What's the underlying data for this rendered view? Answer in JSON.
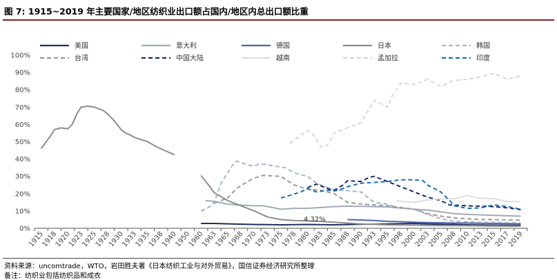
{
  "figure": {
    "title": "图 7:  1915~2019 年主要国家/地区纺织业出口额占国内/地区内总出口额比重",
    "source": "资料来源：uncomtrade，WTO，岩田胜夫著《日本纺织工业与对外贸易》，国信证券经济研究所整理",
    "remark": "备注：纺织业包括纺织品和成衣"
  },
  "chart_data": {
    "type": "line",
    "title": "1915~2019 年主要国家/地区纺织业出口额占国内/地区内总出口额比重",
    "xlabel": "",
    "ylabel": "",
    "ylim": [
      0,
      100
    ],
    "yticks": [
      "0%",
      "10%",
      "20%",
      "30%",
      "40%",
      "50%",
      "60%",
      "70%",
      "80%",
      "90%",
      "100%"
    ],
    "xticks": [
      "1915",
      "1918",
      "1920",
      "1923",
      "1925",
      "1928",
      "1930",
      "1933",
      "1935",
      "1938",
      "1940",
      "1950",
      "1960",
      "1963",
      "1965",
      "1968",
      "1970",
      "1973",
      "1975",
      "1978",
      "1980",
      "1983",
      "1985",
      "1988",
      "1990",
      "1993",
      "1995",
      "1998",
      "2000",
      "2003",
      "2005",
      "2008",
      "2010",
      "2013",
      "2015",
      "2017",
      "2019"
    ],
    "annotation": {
      "label": "4.32%",
      "x": 1979,
      "y": 4.32
    },
    "series": [
      {
        "name": "美国",
        "color": "#1f2d5c",
        "dash": "solid",
        "points": [
          [
            1960,
            2.8
          ],
          [
            1963,
            2.8
          ],
          [
            1966,
            2.5
          ],
          [
            1970,
            2.2
          ],
          [
            1975,
            2.0
          ],
          [
            1980,
            2.2
          ],
          [
            1985,
            2.0
          ],
          [
            1990,
            2.3
          ],
          [
            1995,
            2.5
          ],
          [
            2000,
            2.8
          ],
          [
            2003,
            2.5
          ],
          [
            2005,
            2.3
          ],
          [
            2010,
            2.0
          ],
          [
            2015,
            1.8
          ],
          [
            2019,
            1.7
          ]
        ]
      },
      {
        "name": "意大利",
        "color": "#a0abb8",
        "dash": "solid",
        "points": [
          [
            1961,
            16
          ],
          [
            1963,
            15.5
          ],
          [
            1965,
            14
          ],
          [
            1967,
            13.5
          ],
          [
            1970,
            13
          ],
          [
            1972,
            13
          ],
          [
            1975,
            11
          ],
          [
            1978,
            11.5
          ],
          [
            1980,
            11.5
          ],
          [
            1985,
            12.5
          ],
          [
            1988,
            12.8
          ],
          [
            1990,
            12.7
          ],
          [
            1995,
            12.3
          ],
          [
            2000,
            11
          ],
          [
            2003,
            10.5
          ],
          [
            2005,
            9.5
          ],
          [
            2008,
            8.5
          ],
          [
            2010,
            8
          ],
          [
            2015,
            7.5
          ],
          [
            2017,
            7.2
          ],
          [
            2019,
            7
          ]
        ]
      },
      {
        "name": "德国",
        "color": "#4a64a8",
        "dash": "solid",
        "points": [
          [
            1988,
            5
          ],
          [
            1990,
            4.8
          ],
          [
            1993,
            4.5
          ],
          [
            1995,
            4
          ],
          [
            1998,
            3.8
          ],
          [
            2000,
            3.5
          ],
          [
            2003,
            3.3
          ],
          [
            2005,
            3.2
          ],
          [
            2008,
            3
          ],
          [
            2010,
            3
          ],
          [
            2013,
            2.9
          ],
          [
            2015,
            2.8
          ],
          [
            2017,
            2.7
          ],
          [
            2019,
            2.6
          ]
        ]
      },
      {
        "name": "日本",
        "color": "#8c8c8c",
        "dash": "solid",
        "points": [
          [
            1915,
            46
          ],
          [
            1917,
            53
          ],
          [
            1918,
            57
          ],
          [
            1919,
            58
          ],
          [
            1920,
            57.5
          ],
          [
            1921,
            60
          ],
          [
            1922,
            66
          ],
          [
            1923,
            70
          ],
          [
            1924,
            70.5
          ],
          [
            1925,
            70
          ],
          [
            1926,
            69
          ],
          [
            1927,
            68
          ],
          [
            1928,
            66
          ],
          [
            1929,
            62
          ],
          [
            1930,
            57
          ],
          [
            1931,
            55
          ],
          [
            1932,
            54
          ],
          [
            1933,
            52.5
          ],
          [
            1935,
            50
          ],
          [
            1937,
            47
          ],
          [
            1940,
            42.5
          ],
          [
            1960,
            30.5
          ],
          [
            1962,
            24
          ],
          [
            1963,
            20.5
          ],
          [
            1965,
            16
          ],
          [
            1968,
            13
          ],
          [
            1970,
            10
          ],
          [
            1973,
            6.5
          ],
          [
            1975,
            5
          ],
          [
            1978,
            4.5
          ],
          [
            1980,
            4.32
          ],
          [
            1983,
            4
          ],
          [
            1985,
            3.5
          ],
          [
            1988,
            3
          ],
          [
            1990,
            2.5
          ],
          [
            1993,
            2.3
          ],
          [
            1995,
            2
          ],
          [
            2000,
            1.8
          ],
          [
            2005,
            1.6
          ],
          [
            2010,
            1.5
          ],
          [
            2015,
            1.3
          ],
          [
            2019,
            1.2
          ]
        ]
      },
      {
        "name": "韩国",
        "color": "#a7b3c6",
        "dash": "dashed",
        "points": [
          [
            1960,
            10
          ],
          [
            1961,
            11
          ],
          [
            1962,
            12.5
          ],
          [
            1963,
            15
          ],
          [
            1964,
            26
          ],
          [
            1965,
            32
          ],
          [
            1966,
            36
          ],
          [
            1967,
            38.8
          ],
          [
            1968,
            38
          ],
          [
            1969,
            36.5
          ],
          [
            1970,
            36
          ],
          [
            1971,
            37
          ],
          [
            1972,
            37
          ],
          [
            1974,
            36
          ],
          [
            1976,
            35
          ],
          [
            1978,
            32
          ],
          [
            1980,
            30
          ],
          [
            1982,
            26
          ],
          [
            1985,
            22
          ],
          [
            1987,
            22
          ],
          [
            1990,
            21
          ],
          [
            1993,
            15
          ],
          [
            1995,
            14
          ],
          [
            1997,
            12
          ],
          [
            2000,
            11
          ],
          [
            2003,
            8
          ],
          [
            2005,
            5.5
          ],
          [
            2008,
            4
          ],
          [
            2010,
            3.8
          ],
          [
            2013,
            3.5
          ],
          [
            2015,
            3.4
          ],
          [
            2017,
            3.3
          ],
          [
            2019,
            3.2
          ]
        ]
      },
      {
        "name": "台湾",
        "color": "#9a9a9a",
        "dash": "dashed",
        "points": [
          [
            1963,
            14.5
          ],
          [
            1964,
            16
          ],
          [
            1965,
            17.5
          ],
          [
            1967,
            23
          ],
          [
            1969,
            27
          ],
          [
            1970,
            29
          ],
          [
            1972,
            30.5
          ],
          [
            1975,
            30
          ],
          [
            1978,
            25
          ],
          [
            1980,
            22.5
          ],
          [
            1983,
            22
          ],
          [
            1985,
            20
          ],
          [
            1988,
            15
          ],
          [
            1990,
            14
          ],
          [
            1993,
            13.5
          ],
          [
            1995,
            13
          ],
          [
            1998,
            12
          ],
          [
            2000,
            11
          ],
          [
            2003,
            8.5
          ],
          [
            2005,
            7
          ],
          [
            2008,
            6
          ],
          [
            2010,
            5.5
          ],
          [
            2013,
            5
          ],
          [
            2015,
            5
          ],
          [
            2017,
            4.8
          ],
          [
            2019,
            4.7
          ]
        ]
      },
      {
        "name": "中国大陆",
        "color": "#1a2a66",
        "dash": "dashed",
        "points": [
          [
            1980,
            23.5
          ],
          [
            1982,
            25.5
          ],
          [
            1984,
            23
          ],
          [
            1985,
            22
          ],
          [
            1987,
            25
          ],
          [
            1988,
            27.5
          ],
          [
            1990,
            27
          ],
          [
            1992,
            29.5
          ],
          [
            1993,
            30
          ],
          [
            1994,
            28.5
          ],
          [
            1995,
            27
          ],
          [
            1998,
            24
          ],
          [
            2000,
            21
          ],
          [
            2003,
            18
          ],
          [
            2005,
            16
          ],
          [
            2007,
            13.5
          ],
          [
            2010,
            13
          ],
          [
            2013,
            12.8
          ],
          [
            2015,
            12.5
          ],
          [
            2017,
            11.8
          ],
          [
            2019,
            10.8
          ]
        ]
      },
      {
        "name": "越南",
        "color": "#dedede",
        "dash": "solid",
        "points": [
          [
            1997,
            16
          ],
          [
            1998,
            15.5
          ],
          [
            2000,
            15
          ],
          [
            2002,
            16
          ],
          [
            2005,
            17
          ],
          [
            2008,
            17
          ],
          [
            2010,
            19
          ],
          [
            2012,
            17.5
          ],
          [
            2015,
            17
          ],
          [
            2017,
            15.5
          ],
          [
            2019,
            15.5
          ]
        ]
      },
      {
        "name": "孟加拉",
        "color": "#d8d8d8",
        "dash": "dashed",
        "points": [
          [
            1977,
            49
          ],
          [
            1980,
            56.5
          ],
          [
            1981,
            55
          ],
          [
            1983,
            47
          ],
          [
            1984,
            48
          ],
          [
            1985,
            55
          ],
          [
            1988,
            58
          ],
          [
            1990,
            61
          ],
          [
            1993,
            74
          ],
          [
            1995,
            70
          ],
          [
            1996,
            76
          ],
          [
            1998,
            84
          ],
          [
            2000,
            83
          ],
          [
            2003,
            86
          ],
          [
            2005,
            82
          ],
          [
            2008,
            85.5
          ],
          [
            2010,
            86
          ],
          [
            2012,
            87
          ],
          [
            2015,
            89.5
          ],
          [
            2017,
            86
          ],
          [
            2019,
            88
          ]
        ]
      },
      {
        "name": "印度",
        "color": "#1a6fb5",
        "dash": "dashed",
        "points": [
          [
            1975,
            17.5
          ],
          [
            1977,
            19
          ],
          [
            1979,
            21
          ],
          [
            1980,
            23
          ],
          [
            1982,
            21
          ],
          [
            1984,
            22
          ],
          [
            1985,
            21.5
          ],
          [
            1987,
            23
          ],
          [
            1988,
            24
          ],
          [
            1990,
            26
          ],
          [
            1993,
            26.5
          ],
          [
            1995,
            27
          ],
          [
            1998,
            28
          ],
          [
            2000,
            28
          ],
          [
            2002,
            27.5
          ],
          [
            2003,
            25
          ],
          [
            2005,
            21
          ],
          [
            2007,
            16
          ],
          [
            2008,
            13
          ],
          [
            2010,
            11.5
          ],
          [
            2013,
            11.8
          ],
          [
            2015,
            13.5
          ],
          [
            2017,
            12.5
          ],
          [
            2019,
            11
          ]
        ]
      }
    ]
  }
}
